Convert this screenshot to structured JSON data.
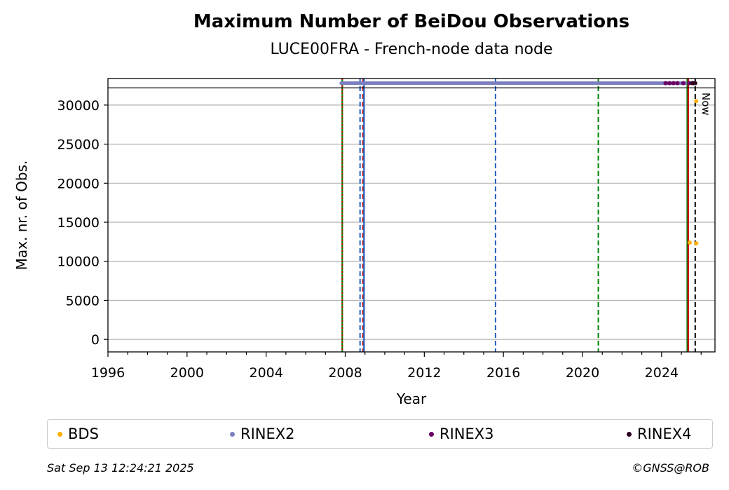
{
  "chart_data": {
    "type": "scatter",
    "title": "Maximum Number of BeiDou Observations",
    "subtitle": "LUCE00FRA - French-node data node",
    "xlabel": "Year",
    "ylabel": "Max. nr. of Obs.",
    "xlim": [
      1996,
      2026.7
    ],
    "ylim": [
      -1600,
      33400
    ],
    "xticks": [
      1996,
      2000,
      2004,
      2008,
      2012,
      2016,
      2020,
      2024
    ],
    "yticks": [
      0,
      5000,
      10000,
      15000,
      20000,
      25000,
      30000
    ],
    "grid": "y",
    "legend_position": "bottom",
    "now_label": "Now",
    "now_x": 2025.7,
    "top_band_y": 32200,
    "series": [
      {
        "name": "BDS",
        "color": "#FFB000",
        "points": [
          [
            2025.42,
            12400
          ],
          [
            2025.75,
            12300
          ],
          [
            2025.75,
            30500
          ]
        ]
      },
      {
        "name": "RINEX2",
        "color": "#7B7FBF",
        "range": [
          2007.8,
          2025.2
        ],
        "y": 32800
      },
      {
        "name": "RINEX3",
        "color": "#6A0063",
        "points": [
          [
            2024.2,
            32800
          ],
          [
            2024.4,
            32800
          ],
          [
            2024.6,
            32800
          ],
          [
            2024.8,
            32800
          ],
          [
            2025.1,
            32800
          ],
          [
            2025.4,
            32800
          ],
          [
            2025.6,
            32800
          ]
        ]
      },
      {
        "name": "RINEX4",
        "color": "#2A0020",
        "points": [
          [
            2025.55,
            32800
          ],
          [
            2025.7,
            32800
          ]
        ]
      }
    ],
    "vlines": [
      {
        "x": 2007.85,
        "color": "#008000",
        "style": "solid"
      },
      {
        "x": 2007.85,
        "color": "#D00000",
        "style": "dotted"
      },
      {
        "x": 2008.75,
        "color": "#1F5FBF",
        "style": "dashed"
      },
      {
        "x": 2008.9,
        "color": "#D00000",
        "style": "dashed"
      },
      {
        "x": 2008.95,
        "color": "#1F5FBF",
        "style": "solid"
      },
      {
        "x": 2015.6,
        "color": "#1F5FBF",
        "style": "dashed"
      },
      {
        "x": 2020.8,
        "color": "#008000",
        "style": "dashed"
      },
      {
        "x": 2025.3,
        "color": "#008000",
        "style": "solid"
      },
      {
        "x": 2025.35,
        "color": "#D00000",
        "style": "solid"
      },
      {
        "x": 2025.7,
        "color": "#000000",
        "style": "dashed"
      }
    ]
  },
  "footer": {
    "date": "Sat Sep 13 12:24:21 2025",
    "copyright": "©GNSS@ROB"
  }
}
